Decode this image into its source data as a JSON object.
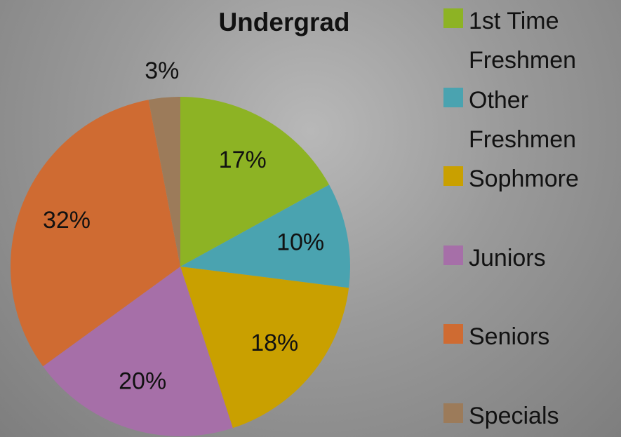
{
  "chart_data": {
    "type": "pie",
    "title": "Undergrad",
    "categories": [
      "1st Time Freshmen",
      "Other Freshmen",
      "Sophmore",
      "Juniors",
      "Seniors",
      "Specials"
    ],
    "values": [
      17,
      10,
      18,
      20,
      32,
      3
    ],
    "value_labels": [
      "17%",
      "10%",
      "18%",
      "20%",
      "32%",
      "3%"
    ],
    "colors": [
      "#8db324",
      "#4aa3b0",
      "#c9a000",
      "#a66fa8",
      "#cf6b32",
      "#9c7b5a"
    ],
    "legend": "right"
  }
}
